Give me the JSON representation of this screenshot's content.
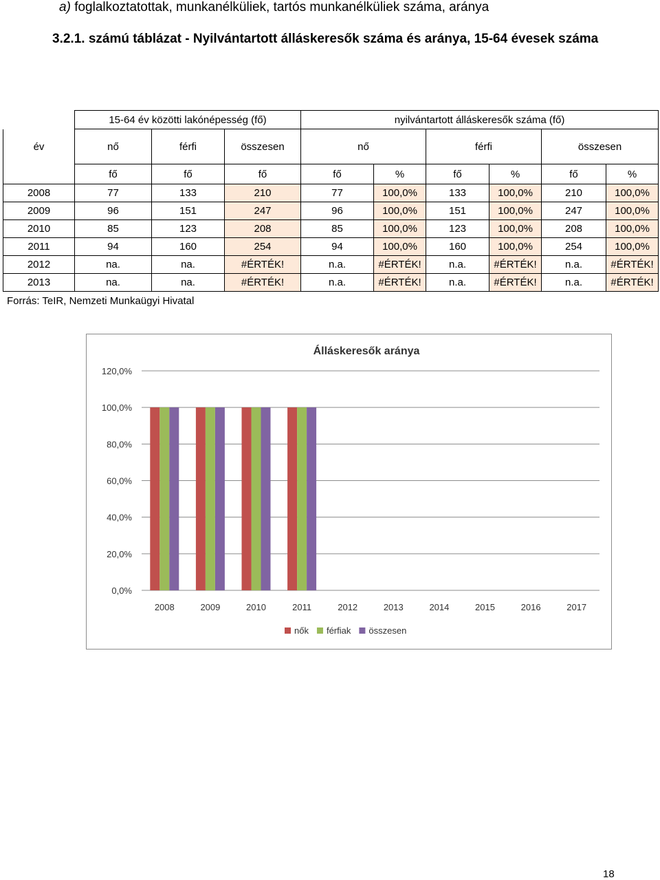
{
  "heading": {
    "letter": "a)",
    "text": "foglalkoztatottak, munkanélküliek, tartós munkanélküliek száma, aránya"
  },
  "table_title": "3.2.1. számú táblázat - Nyilvántartott álláskeresők száma és aránya, 15-64 évesek száma",
  "table": {
    "group_population": "15-64 év közötti lakónépesség (fő)",
    "group_jobseekers": "nyilvántartott álláskeresők száma (fő)",
    "col_year": "év",
    "sub_headers": [
      "nő",
      "férfi",
      "összesen",
      "nő",
      "férfi",
      "összesen"
    ],
    "units": [
      "fő",
      "fő",
      "fő",
      "fő",
      "%",
      "fő",
      "%",
      "fő",
      "%"
    ],
    "rows": [
      [
        "2008",
        "77",
        "133",
        "210",
        "77",
        "100,0%",
        "133",
        "100,0%",
        "210",
        "100,0%"
      ],
      [
        "2009",
        "96",
        "151",
        "247",
        "96",
        "100,0%",
        "151",
        "100,0%",
        "247",
        "100,0%"
      ],
      [
        "2010",
        "85",
        "123",
        "208",
        "85",
        "100,0%",
        "123",
        "100,0%",
        "208",
        "100,0%"
      ],
      [
        "2011",
        "94",
        "160",
        "254",
        "94",
        "100,0%",
        "160",
        "100,0%",
        "254",
        "100,0%"
      ],
      [
        "2012",
        "na.",
        "na.",
        "#ÉRTÉK!",
        "n.a.",
        "#ÉRTÉK!",
        "n.a.",
        "#ÉRTÉK!",
        "n.a.",
        "#ÉRTÉK!"
      ],
      [
        "2013",
        "na.",
        "na.",
        "#ÉRTÉK!",
        "n.a.",
        "#ÉRTÉK!",
        "n.a.",
        "#ÉRTÉK!",
        "n.a.",
        "#ÉRTÉK!"
      ]
    ]
  },
  "source": "Forrás: TeIR, Nemzeti Munkaügyi Hivatal",
  "page_number": "18",
  "chart_data": {
    "type": "bar",
    "title": "Álláskeresők aránya",
    "categories": [
      "2008",
      "2009",
      "2010",
      "2011",
      "2012",
      "2013",
      "2014",
      "2015",
      "2016",
      "2017"
    ],
    "series": [
      {
        "name": "nők",
        "color": "#c0504d",
        "values": [
          100,
          100,
          100,
          100,
          null,
          null,
          null,
          null,
          null,
          null
        ]
      },
      {
        "name": "férfiak",
        "color": "#9bbb59",
        "values": [
          100,
          100,
          100,
          100,
          null,
          null,
          null,
          null,
          null,
          null
        ]
      },
      {
        "name": "összesen",
        "color": "#8064a2",
        "values": [
          100,
          100,
          100,
          100,
          null,
          null,
          null,
          null,
          null,
          null
        ]
      }
    ],
    "ylim": [
      0,
      120
    ],
    "yticks": [
      "0,0%",
      "20,0%",
      "40,0%",
      "60,0%",
      "80,0%",
      "100,0%",
      "120,0%"
    ],
    "grid": true,
    "legend": "bottom"
  }
}
